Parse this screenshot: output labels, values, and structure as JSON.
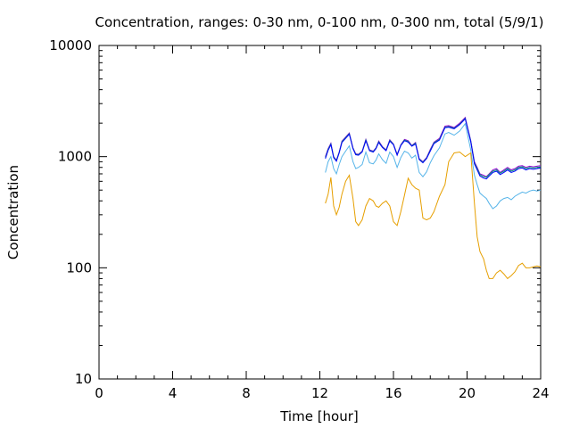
{
  "chart_data": {
    "type": "line",
    "title": "Concentration, ranges: 0-30 nm, 0-100 nm, 0-300 nm, total (5/9/1)",
    "xlabel": "Time [hour]",
    "ylabel": "Concentration",
    "xlim": [
      0,
      24
    ],
    "ylim": [
      10,
      10000
    ],
    "yscale": "log",
    "grid": false,
    "x_ticks": [
      0,
      4,
      8,
      12,
      16,
      20,
      24
    ],
    "x_tick_labels": [
      "0",
      "4",
      "8",
      "12",
      "16",
      "20",
      "24"
    ],
    "y_ticks": [
      10,
      100,
      1000,
      10000
    ],
    "y_tick_labels": [
      "10",
      "100",
      "1000",
      "10000"
    ],
    "x": [
      12.3,
      12.45,
      12.6,
      12.75,
      12.9,
      13.05,
      13.2,
      13.4,
      13.6,
      13.8,
      13.95,
      14.1,
      14.3,
      14.5,
      14.7,
      14.9,
      15.05,
      15.2,
      15.4,
      15.6,
      15.8,
      16.0,
      16.2,
      16.4,
      16.6,
      16.8,
      17.0,
      17.2,
      17.4,
      17.6,
      17.8,
      18.0,
      18.2,
      18.5,
      18.8,
      19.0,
      19.3,
      19.6,
      19.9,
      20.2,
      20.4,
      20.55,
      20.7,
      20.9,
      21.05,
      21.2,
      21.4,
      21.6,
      21.8,
      22.0,
      22.2,
      22.4,
      22.6,
      22.8,
      23.0,
      23.2,
      23.4,
      23.6,
      23.8,
      24.0
    ],
    "series": [
      {
        "color": "#9400d3",
        "values": [
          1000,
          1180,
          1320,
          1000,
          930,
          1100,
          1380,
          1500,
          1630,
          1200,
          1060,
          1050,
          1120,
          1430,
          1150,
          1120,
          1200,
          1380,
          1230,
          1150,
          1420,
          1300,
          1050,
          1280,
          1430,
          1390,
          1260,
          1340,
          960,
          900,
          980,
          1160,
          1350,
          1460,
          1880,
          1900,
          1830,
          2000,
          2250,
          1400,
          900,
          800,
          700,
          680,
          660,
          700,
          760,
          780,
          720,
          760,
          800,
          760,
          780,
          820,
          830,
          800,
          820,
          810,
          820,
          830
        ]
      },
      {
        "color": "#009e73",
        "values": [
          980,
          1160,
          1300,
          990,
          920,
          1090,
          1360,
          1480,
          1610,
          1190,
          1050,
          1040,
          1110,
          1410,
          1140,
          1110,
          1190,
          1360,
          1220,
          1140,
          1400,
          1290,
          1040,
          1270,
          1410,
          1370,
          1250,
          1320,
          950,
          890,
          970,
          1140,
          1330,
          1430,
          1840,
          1860,
          1800,
          1960,
          2210,
          1380,
          880,
          780,
          690,
          660,
          650,
          690,
          740,
          760,
          710,
          740,
          780,
          740,
          760,
          800,
          810,
          780,
          800,
          790,
          800,
          810
        ]
      },
      {
        "color": "#56b4e9",
        "values": [
          720,
          900,
          1000,
          780,
          700,
          850,
          1000,
          1120,
          1250,
          900,
          780,
          800,
          850,
          1100,
          880,
          860,
          930,
          1060,
          940,
          870,
          1100,
          1000,
          800,
          980,
          1120,
          1080,
          970,
          1030,
          720,
          660,
          730,
          880,
          1020,
          1200,
          1600,
          1650,
          1560,
          1700,
          1980,
          1150,
          680,
          560,
          470,
          440,
          420,
          380,
          340,
          360,
          400,
          420,
          430,
          410,
          440,
          460,
          480,
          470,
          490,
          500,
          490,
          500
        ]
      },
      {
        "color": "#e69f00",
        "values": [
          380,
          460,
          650,
          360,
          300,
          350,
          460,
          600,
          680,
          420,
          260,
          240,
          270,
          360,
          420,
          400,
          360,
          350,
          380,
          400,
          360,
          260,
          240,
          320,
          450,
          640,
          560,
          520,
          500,
          280,
          270,
          280,
          320,
          440,
          560,
          900,
          1080,
          1100,
          1000,
          1080,
          380,
          190,
          140,
          120,
          95,
          80,
          80,
          90,
          95,
          88,
          80,
          85,
          92,
          105,
          110,
          100,
          100,
          102,
          104,
          102
        ]
      },
      {
        "color": "#0000ff",
        "values": [
          960,
          1140,
          1280,
          980,
          910,
          1080,
          1340,
          1460,
          1590,
          1180,
          1040,
          1030,
          1100,
          1390,
          1130,
          1100,
          1180,
          1340,
          1210,
          1130,
          1380,
          1280,
          1030,
          1260,
          1390,
          1350,
          1240,
          1300,
          940,
          880,
          960,
          1120,
          1310,
          1410,
          1820,
          1840,
          1780,
          1940,
          2190,
          1360,
          860,
          760,
          670,
          640,
          630,
          670,
          720,
          740,
          690,
          720,
          760,
          720,
          740,
          780,
          790,
          760,
          780,
          770,
          780,
          790
        ]
      }
    ]
  }
}
